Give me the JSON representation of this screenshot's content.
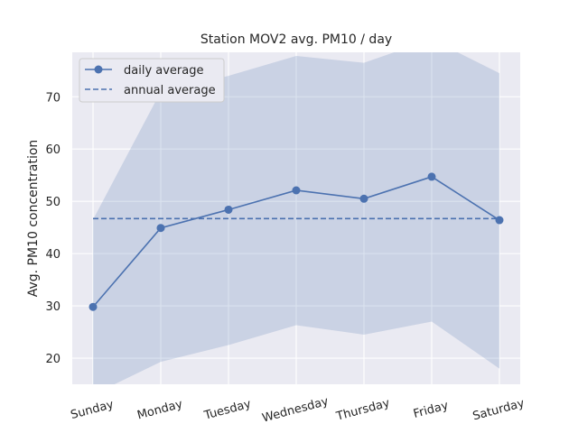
{
  "chart_data": {
    "type": "line",
    "title": "Station MOV2 avg. PM10 / day",
    "xlabel": "",
    "ylabel": "Avg. PM10 concentration",
    "categories": [
      "Sunday",
      "Monday",
      "Tuesday",
      "Wednesday",
      "Thursday",
      "Friday",
      "Saturday"
    ],
    "series": [
      {
        "name": "daily average",
        "values": [
          29.8,
          44.9,
          48.4,
          52.1,
          50.5,
          54.7,
          46.4
        ],
        "band_lower": [
          13.0,
          19.3,
          22.5,
          26.3,
          24.5,
          27.0,
          18.0
        ],
        "band_upper": [
          46.5,
          71.0,
          74.0,
          77.8,
          76.5,
          81.0,
          74.5
        ],
        "color": "#4c72b0"
      },
      {
        "name": "annual average",
        "value": 46.7,
        "style": "dashed",
        "color": "#4c72b0"
      }
    ],
    "ylim": [
      15,
      78.5
    ],
    "yticks": [
      20,
      30,
      40,
      50,
      60,
      70
    ],
    "grid": true,
    "legend": "top-left",
    "colors": {
      "plot_bg": "#eaeaf2",
      "grid": "#ffffff",
      "band": "#4c72b0"
    }
  }
}
